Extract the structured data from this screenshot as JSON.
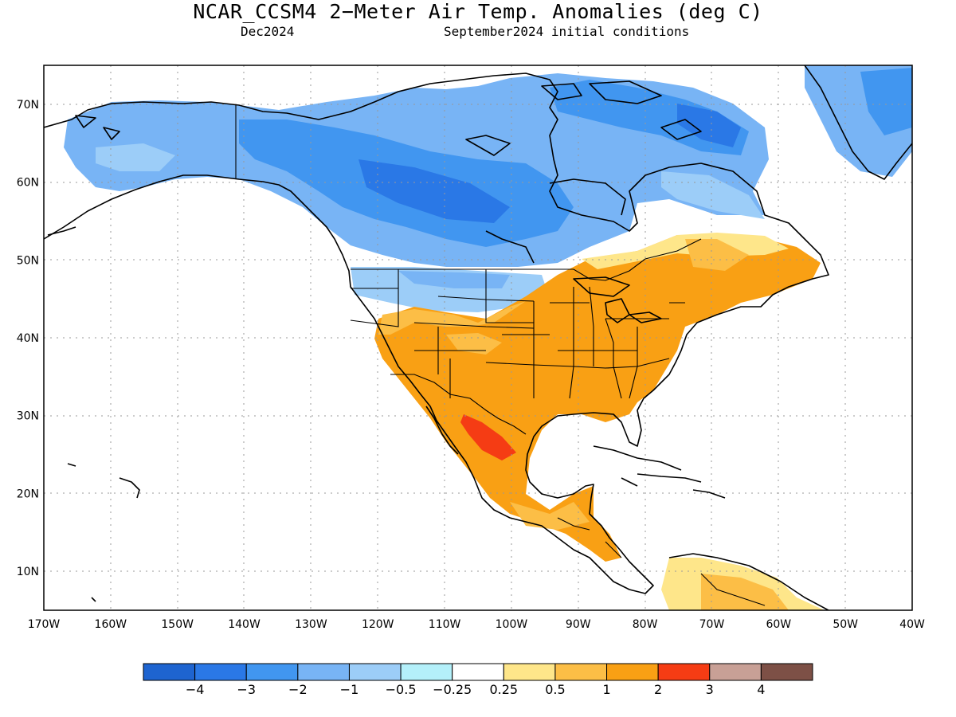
{
  "header": {
    "title": "NCAR_CCSM4 2−Meter Air Temp. Anomalies (deg C)",
    "valid_month": "Dec2024",
    "init_conditions": "September2024 initial conditions"
  },
  "map": {
    "lon_range": [
      -170,
      -40
    ],
    "lat_range": [
      5,
      75
    ],
    "lon_ticks": [
      "170W",
      "160W",
      "150W",
      "140W",
      "130W",
      "120W",
      "110W",
      "100W",
      "90W",
      "80W",
      "70W",
      "60W",
      "50W",
      "40W"
    ],
    "lat_ticks": [
      "10N",
      "20N",
      "30N",
      "40N",
      "50N",
      "60N",
      "70N"
    ]
  },
  "legend": {
    "colors": [
      "#1e64d0",
      "#2a78e6",
      "#4196f0",
      "#78b4f5",
      "#9ccdf8",
      "#b4f0fa",
      "#ffffff",
      "#fee68a",
      "#fcbe46",
      "#f9a014",
      "#f53c14",
      "#c8a096",
      "#7d5046"
    ],
    "labels": [
      "−4",
      "−3",
      "−2",
      "−1",
      "−0.5",
      "−0.25",
      "0.25",
      "0.5",
      "1",
      "2",
      "3",
      "4"
    ]
  }
}
